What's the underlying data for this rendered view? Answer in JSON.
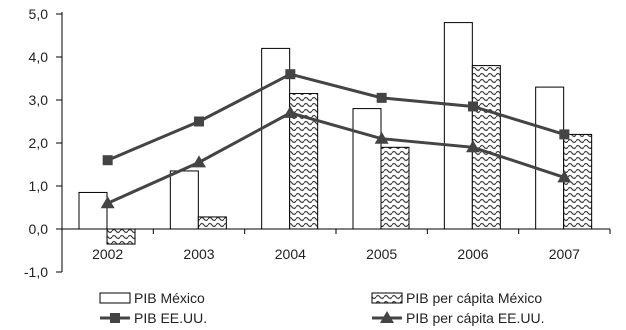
{
  "chart_data": {
    "type": "bar",
    "title": "",
    "xlabel": "",
    "ylabel": "",
    "categories": [
      "2002",
      "2003",
      "2004",
      "2005",
      "2006",
      "2007"
    ],
    "y_ticks": [
      "5,0",
      "4,0",
      "3,0",
      "2,0",
      "1,0",
      "0,0",
      "-1,0"
    ],
    "ylim": [
      -1,
      5
    ],
    "grid": false,
    "legend_position": "bottom",
    "bar_series": [
      {
        "name": "PIB México",
        "values": [
          0.85,
          1.35,
          4.2,
          2.8,
          4.8,
          3.3
        ],
        "fill": "white"
      },
      {
        "name": "PIB per cápita México",
        "values": [
          -0.35,
          0.28,
          3.15,
          1.9,
          3.8,
          2.2
        ],
        "fill": "wave-pattern"
      }
    ],
    "line_series": [
      {
        "name": "PIB EE.UU.",
        "values": [
          1.6,
          2.5,
          3.6,
          3.05,
          2.85,
          2.2
        ],
        "marker": "square"
      },
      {
        "name": "PIB per cápita EE.UU.",
        "values": [
          0.6,
          1.55,
          2.7,
          2.1,
          1.9,
          1.2
        ],
        "marker": "triangle"
      }
    ],
    "colors": {
      "lines": "#444444",
      "bar_stroke": "#000000",
      "axis": "#000000"
    }
  }
}
